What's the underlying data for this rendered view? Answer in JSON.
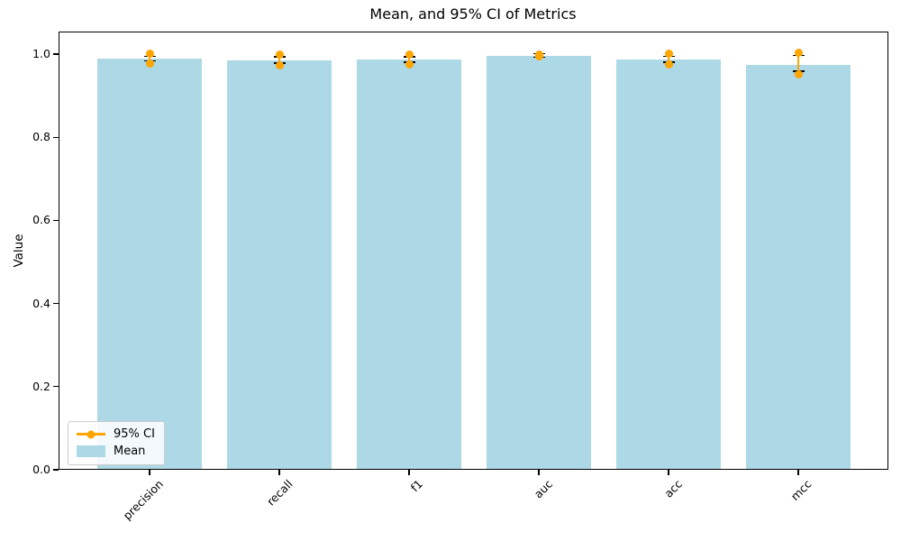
{
  "figure": {
    "title": "Mean, and 95% CI of Metrics",
    "y_axis_label": "Value",
    "y_tick_labels": [
      "0.0",
      "0.2",
      "0.4",
      "0.6",
      "0.8",
      "1.0"
    ]
  },
  "legend": {
    "items": [
      {
        "label": "95% CI",
        "marker": "line-with-dot",
        "color": "#FFA500"
      },
      {
        "label": "Mean",
        "marker": "patch",
        "color": "#ADD8E6"
      }
    ]
  },
  "chart_data": {
    "type": "bar",
    "title": "Mean, and 95% CI of Metrics",
    "xlabel": "",
    "ylabel": "Value",
    "categories": [
      "precision",
      "recall",
      "f1",
      "auc",
      "acc",
      "mcc"
    ],
    "series": [
      {
        "name": "Mean",
        "render": "bar",
        "color": "#ADD8E6",
        "values": [
          0.99,
          0.985,
          0.987,
          0.996,
          0.987,
          0.974
        ]
      },
      {
        "name": "95% CI",
        "render": "errorbar",
        "color": "#FFA500",
        "cap_color": "#000000",
        "low": [
          0.977,
          0.972,
          0.974,
          0.994,
          0.974,
          0.952
        ],
        "high": [
          1.001,
          1.0,
          1.0,
          0.999,
          1.001,
          1.003
        ]
      }
    ],
    "yticks": [
      0.0,
      0.2,
      0.4,
      0.6,
      0.8,
      1.0
    ],
    "ylim": [
      0.0,
      1.054
    ],
    "grid": false,
    "legend_position": "lower left",
    "x_tick_label_rotation_deg": 45
  }
}
